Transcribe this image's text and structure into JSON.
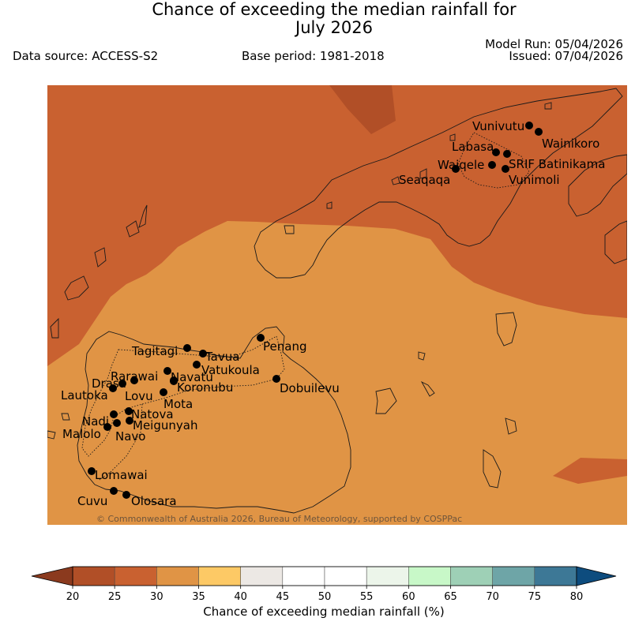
{
  "title_line1": "Chance of exceeding the median rainfall for",
  "title_line2": "July 2026",
  "data_source": "Data source: ACCESS-S2",
  "base_period": "Base period: 1981-2018",
  "model_run": "Model Run: 05/04/2026",
  "issued": "Issued: 07/04/2026",
  "copyright": "© Commonwealth of Australia 2026, Bureau of Meteorology, supported by COSPPac",
  "colorbar": {
    "label": "Chance of exceeding median rainfall (%)",
    "ticks": [
      "20",
      "25",
      "30",
      "35",
      "40",
      "45",
      "50",
      "55",
      "60",
      "65",
      "70",
      "75",
      "80"
    ],
    "under_color": "#8b3a1e",
    "over_color": "#0d4c7e",
    "bins": [
      {
        "range": "20-25",
        "color": "#b14f27"
      },
      {
        "range": "25-30",
        "color": "#c96130"
      },
      {
        "range": "30-35",
        "color": "#e09445"
      },
      {
        "range": "35-40",
        "color": "#fdc965"
      },
      {
        "range": "40-45",
        "color": "#ece8e4"
      },
      {
        "range": "45-50",
        "color": "#ffffff"
      },
      {
        "range": "50-55",
        "color": "#ffffff"
      },
      {
        "range": "55-60",
        "color": "#ecf5ea"
      },
      {
        "range": "60-65",
        "color": "#c8f8c8"
      },
      {
        "range": "65-70",
        "color": "#9ed0b6"
      },
      {
        "range": "70-75",
        "color": "#6ea5a7"
      },
      {
        "range": "75-80",
        "color": "#3d7896"
      }
    ]
  },
  "map": {
    "category_colors": {
      "20-25": "#b14f27",
      "25-30": "#c96130",
      "30-35": "#e09445"
    },
    "stations": [
      {
        "name": "Vunivutu"
      },
      {
        "name": "Wainikoro"
      },
      {
        "name": "Labasa"
      },
      {
        "name": "Waiqele"
      },
      {
        "name": "SRIF Batinikama"
      },
      {
        "name": "Seaqaqa"
      },
      {
        "name": "Vunimoli"
      },
      {
        "name": "Tagitagi"
      },
      {
        "name": "Tavua"
      },
      {
        "name": "Penang"
      },
      {
        "name": "Vatukoula"
      },
      {
        "name": "Rarawai"
      },
      {
        "name": "Navatu"
      },
      {
        "name": "Drasa"
      },
      {
        "name": "Koronubu"
      },
      {
        "name": "Lautoka"
      },
      {
        "name": "Lovu"
      },
      {
        "name": "Dobuilevu"
      },
      {
        "name": "Mota"
      },
      {
        "name": "Natova"
      },
      {
        "name": "Nadi"
      },
      {
        "name": "Meigunyah"
      },
      {
        "name": "Malolo"
      },
      {
        "name": "Navo"
      },
      {
        "name": "Lomawai"
      },
      {
        "name": "Cuvu"
      },
      {
        "name": "Olosara"
      }
    ]
  }
}
